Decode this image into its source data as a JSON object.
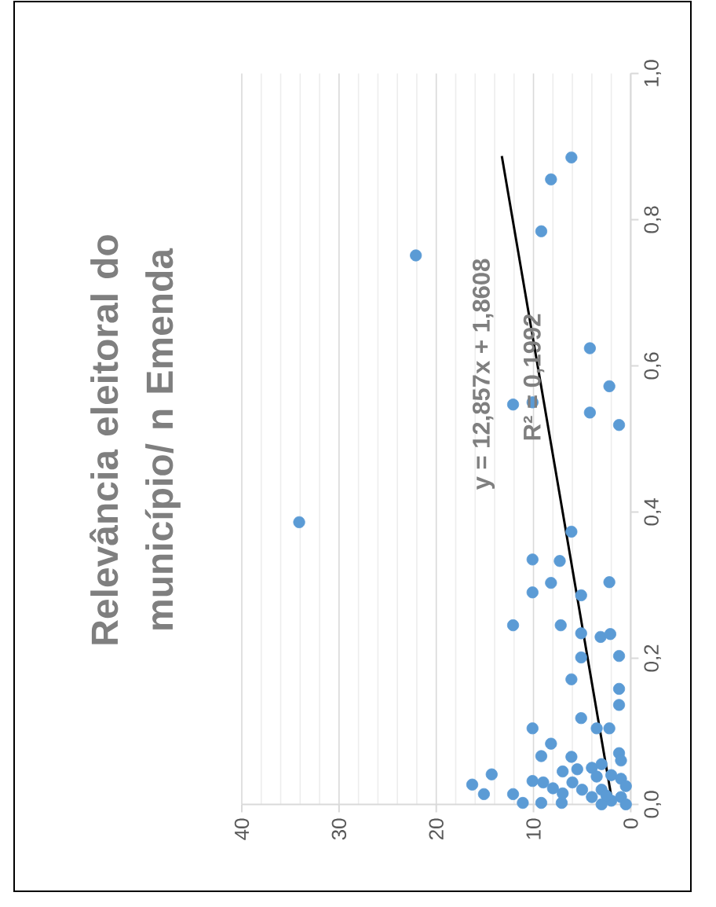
{
  "chart_data": {
    "type": "scatter",
    "title": "Relevância eleitoral do município/ n Emenda",
    "annotations": [
      "y = 12,857x + 1,8608",
      "R² = 0,1992"
    ],
    "xlim": [
      40,
      0
    ],
    "ylim": [
      0,
      1
    ],
    "yticks": [
      {
        "value": 0,
        "label": "0,0"
      },
      {
        "value": 0.2,
        "label": "0,2"
      },
      {
        "value": 0.4,
        "label": "0,4"
      },
      {
        "value": 0.6,
        "label": "0,6"
      },
      {
        "value": 0.8,
        "label": "0,8"
      },
      {
        "value": 1,
        "label": "1,0"
      }
    ],
    "xticks": [
      40,
      30,
      20,
      10,
      0
    ],
    "grid": "x",
    "marker": "circle",
    "series": [
      {
        "color": "#5b9bd5",
        "values": [
          0.885,
          0.855,
          0.784,
          0.751,
          0.624,
          0.572,
          0.536,
          0.519,
          0.547,
          0.55,
          0.386,
          0.373,
          0.335,
          0.333,
          0.303,
          0.304,
          0.29,
          0.286,
          0.245,
          0.245,
          0.234,
          0.229,
          0.233,
          0.203,
          0.201,
          0.171,
          0.158,
          0.136,
          0.118,
          0.104,
          0.104,
          0.104,
          0.083,
          0.066,
          0.07,
          0.065,
          0.041,
          0.027,
          0.014,
          0.014,
          0.002,
          0.032,
          0.002,
          0.002,
          0.05,
          0.04,
          0.03,
          0.02,
          0.01,
          0.0,
          0.02,
          0.045,
          0.035,
          0.01,
          0.005,
          0.025,
          0.055,
          0.06,
          0.015,
          0.0,
          0.03,
          0.048,
          0.012,
          0.038,
          0.022
        ],
        "x": [
          6.1,
          8.2,
          9.2,
          22.1,
          4.2,
          2.2,
          4.2,
          1.2,
          12.1,
          10.1,
          34.1,
          6.1,
          10.1,
          7.3,
          8.2,
          2.2,
          10.1,
          5.1,
          12.1,
          7.2,
          5.1,
          3.1,
          2.1,
          1.2,
          5.1,
          6.1,
          1.2,
          1.2,
          5.1,
          10.1,
          2.2,
          3.5,
          8.2,
          9.2,
          1.2,
          6.1,
          14.3,
          16.3,
          15.1,
          12.1,
          11.1,
          10.1,
          9.2,
          7.1,
          4.0,
          2.0,
          6.0,
          3.0,
          1.0,
          0.5,
          5.0,
          7.0,
          1.0,
          4.0,
          2.0,
          0.5,
          3.0,
          1.0,
          7.0,
          3.0,
          9.0,
          5.5,
          2.5,
          3.5,
          8.0
        ]
      },
      {
        "type": "line",
        "marker": "none",
        "color": "#000000",
        "x": [
          1.8608,
          13.26
        ],
        "values": [
          0,
          0.887
        ]
      }
    ]
  }
}
